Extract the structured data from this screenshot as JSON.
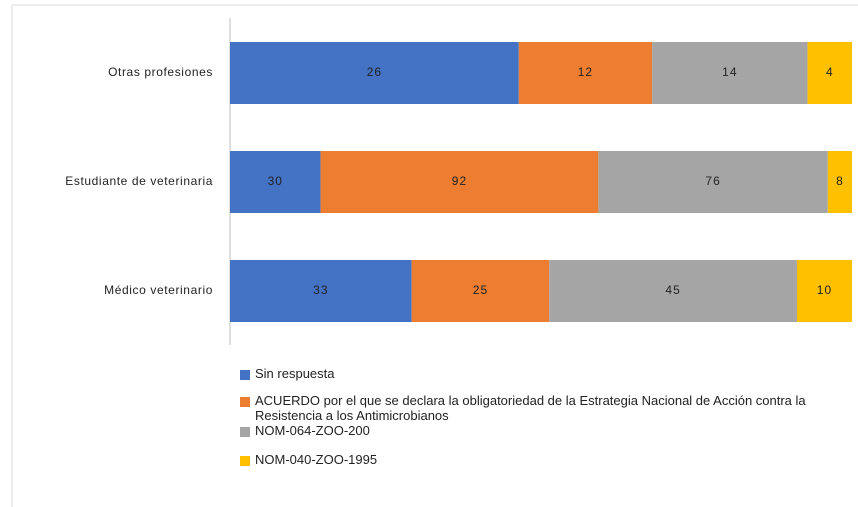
{
  "chart_data": {
    "type": "stacked-bar-100",
    "categories": [
      "Otras profesiones",
      "Estudiante de veterinaria",
      "Médico veterinario"
    ],
    "series": [
      {
        "name": "Sin respuesta",
        "color": "#4472c4",
        "values": [
          26,
          30,
          33
        ]
      },
      {
        "name": "ACUERDO por el que se declara la obligatoriedad de la Estrategia Nacional de Acción contra la Resistencia a los Antimicrobianos",
        "color": "#ed7d31",
        "values": [
          12,
          92,
          25
        ]
      },
      {
        "name": "NOM-064-ZOO-200",
        "color": "#a5a5a5",
        "values": [
          14,
          76,
          45
        ]
      },
      {
        "name": "NOM-040-ZOO-1995",
        "color": "#ffc000",
        "values": [
          4,
          8,
          10
        ]
      }
    ],
    "legend": "bottom"
  }
}
